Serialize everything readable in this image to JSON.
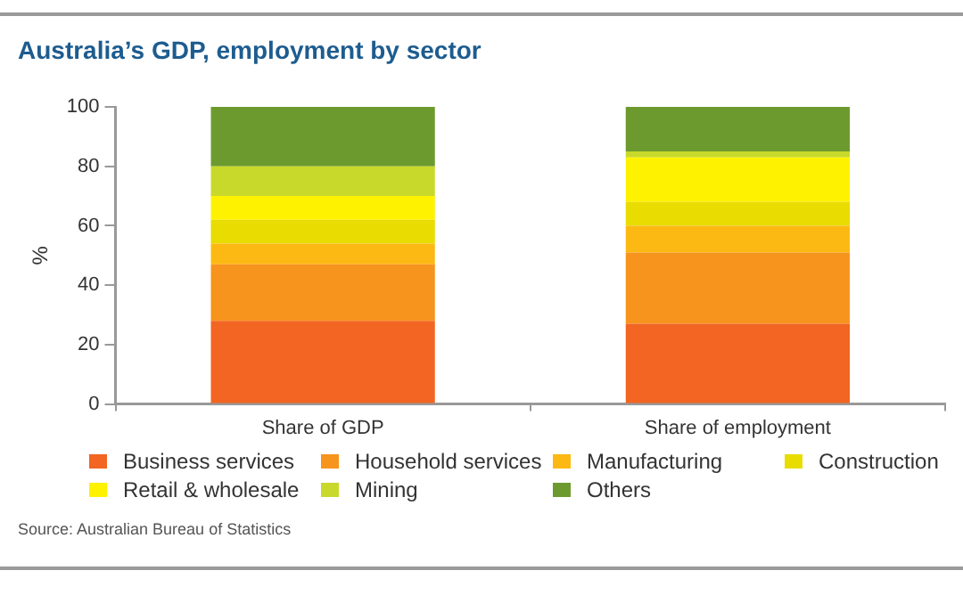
{
  "chart_data": {
    "type": "bar",
    "title": "Australia’s GDP, employment by sector",
    "ylabel": "%",
    "categories": [
      "Share of GDP",
      "Share of employment"
    ],
    "stacked": true,
    "ylim": [
      0,
      100
    ],
    "yticks": [
      0,
      20,
      40,
      60,
      80,
      100
    ],
    "grid": false,
    "legend": "bottom",
    "annotations": [
      "Source: Australian Bureau of Statistics"
    ],
    "series": [
      {
        "name": "Business services",
        "color": "#f26522",
        "values": [
          28,
          27
        ]
      },
      {
        "name": "Household services",
        "color": "#f7941d",
        "values": [
          19,
          24
        ]
      },
      {
        "name": "Manufacturing",
        "color": "#fdb913",
        "values": [
          7,
          9
        ]
      },
      {
        "name": "Construction",
        "color": "#e8dc00",
        "values": [
          8,
          8
        ]
      },
      {
        "name": "Retail & wholesale",
        "color": "#fff200",
        "values": [
          8,
          15
        ]
      },
      {
        "name": "Mining",
        "color": "#c8d92b",
        "values": [
          10,
          2
        ]
      },
      {
        "name": "Others",
        "color": "#6d9a2e",
        "values": [
          20,
          15
        ]
      }
    ]
  }
}
